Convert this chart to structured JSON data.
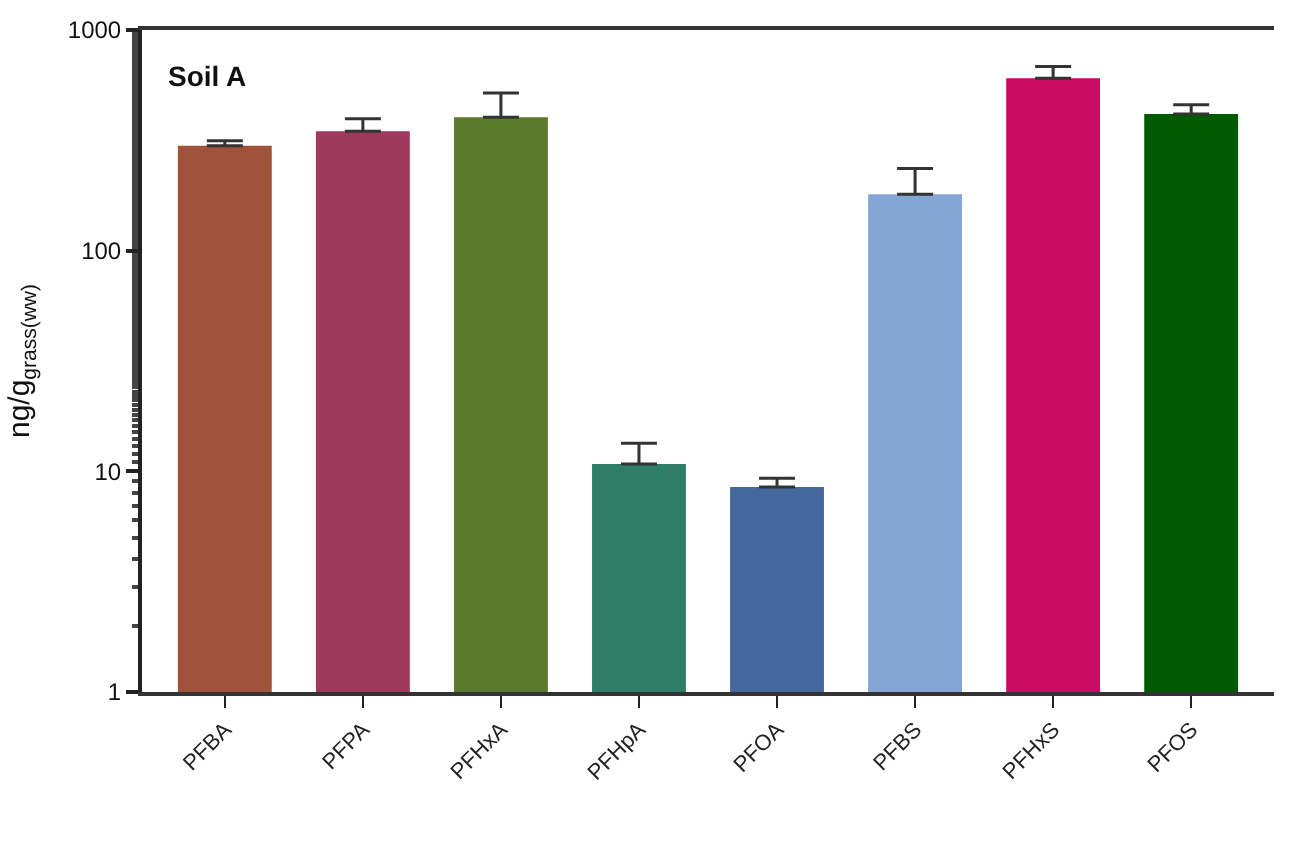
{
  "chart_data": {
    "type": "bar",
    "ylabel": "ng/g$_{grass(ww)}$",
    "categories": [
      "PFBA",
      "PFPA",
      "PFHxA",
      "PFHpA",
      "PFOA",
      "PFBS",
      "PFHxS",
      "PFOS"
    ],
    "values": [
      299,
      348,
      402,
      10.8,
      8.5,
      180,
      604,
      416
    ],
    "colors": [
      "#a0533a",
      "#9e3a5c",
      "#5b7a2c",
      "#2e7d67",
      "#44689e",
      "#84a6d4",
      "#cc0a63",
      "#005a00"
    ],
    "errors": [
      [
        299,
        315
      ],
      [
        348,
        396
      ],
      [
        402,
        518
      ],
      [
        10.8,
        13.4
      ],
      [
        8.5,
        9.3
      ],
      [
        180,
        236
      ],
      [
        604,
        684
      ],
      [
        416,
        458
      ]
    ],
    "log": true,
    "ylim": [
      1,
      1000
    ],
    "yticks": [
      1,
      10,
      100,
      1000
    ],
    "annotations": [
      "Soil A"
    ]
  }
}
